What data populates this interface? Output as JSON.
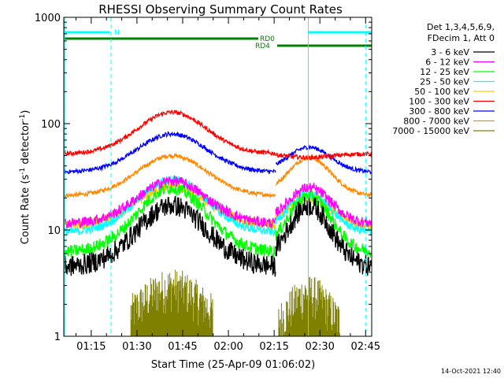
{
  "chart_data": {
    "type": "line",
    "title": "RHESSI Observing Summary Count Rates",
    "xlabel": "Start Time (25-Apr-09 01:06:02)",
    "ylabel_main": "Count Rate (s",
    "ylabel_sup1": "-1",
    "ylabel_mid": " detector",
    "ylabel_sup2": "-1",
    "ylabel_end": ")",
    "y_scale": "log",
    "ylim": [
      1,
      1000
    ],
    "y_ticks": [
      {
        "value": 1,
        "label": "1"
      },
      {
        "value": 10,
        "label": "10"
      },
      {
        "value": 100,
        "label": "100"
      },
      {
        "value": 1000,
        "label": "1000"
      }
    ],
    "xlim_minutes": [
      66.0,
      167.0
    ],
    "x_ticks": [
      {
        "minutes": 75,
        "label": "01:15"
      },
      {
        "minutes": 90,
        "label": "01:30"
      },
      {
        "minutes": 105,
        "label": "01:45"
      },
      {
        "minutes": 120,
        "label": "02:00"
      },
      {
        "minutes": 135,
        "label": "02:15"
      },
      {
        "minutes": 150,
        "label": "02:30"
      },
      {
        "minutes": 165,
        "label": "02:45"
      }
    ],
    "legend_header": [
      "Det 1,3,4,5,6,9,",
      "FDecim 1, Att 0"
    ],
    "series": [
      {
        "name": "3 - 6 keV",
        "color": "#000000",
        "base": 4.5,
        "orbit1_peak": 17,
        "orbit2_peak": 17,
        "noise": 0.1
      },
      {
        "name": "6 - 12 keV",
        "color": "#ff00ff",
        "base": 11.5,
        "orbit1_peak": 29,
        "orbit2_peak": 25,
        "noise": 0.05
      },
      {
        "name": "12 - 25 keV",
        "color": "#00ff00",
        "base": 6.2,
        "orbit1_peak": 25,
        "orbit2_peak": 21,
        "noise": 0.06
      },
      {
        "name": "25 - 50 keV",
        "color": "#00ffff",
        "base": 9.5,
        "orbit1_peak": 30,
        "orbit2_peak": 22,
        "noise": 0.04
      },
      {
        "name": "50 - 100 keV",
        "color": "#ffcc00",
        "base": 11.0,
        "orbit1_peak": 26,
        "orbit2_peak": 20,
        "noise": 0.05
      },
      {
        "name": "100 - 300 keV",
        "color": "#ff0000",
        "base": 52,
        "orbit1_peak": 128,
        "orbit2_peak": 48,
        "noise": 0.02
      },
      {
        "name": "300 - 800 keV",
        "color": "#0000ff",
        "base": 35,
        "orbit1_peak": 80,
        "orbit2_peak": 60,
        "noise": 0.02
      },
      {
        "name": "800 - 7000 keV",
        "color": "#ff8800",
        "base": 21,
        "orbit1_peak": 50,
        "orbit2_peak": 48,
        "noise": 0.02
      },
      {
        "name": "7000 - 15000 keV",
        "color": "#808000",
        "base": 1.0,
        "orbit1_peak": 3.0,
        "orbit2_peak": 2.6,
        "noise": 0.15
      }
    ],
    "orbit1": {
      "start": 66.0,
      "end": 135.5,
      "center": 101.5,
      "width": 16
    },
    "orbit2": {
      "start": 135.5,
      "end": 167.0,
      "center": 146.5,
      "width": 10
    },
    "annotations": {
      "n_label": "N",
      "n_color": "#00ffff",
      "n_range_minutes": [
        66.0,
        81.5
      ],
      "rd0_label": "RD0",
      "rd0_color": "#008000",
      "rd0_range_minutes": [
        66.0,
        136.0
      ],
      "rd4_label": "RD4",
      "rd4_color": "#008000",
      "rd4_range_minutes": [
        136.0,
        167.0
      ],
      "n2_range_minutes": [
        146.0,
        167.0
      ],
      "cyan_dashed_minutes": [
        81.5,
        165.0
      ],
      "cyan_solid_minutes": [
        146.2
      ]
    },
    "grid": false,
    "legend_position": "right"
  },
  "footer": {
    "timestamp": "14-Oct-2021 12:40"
  }
}
